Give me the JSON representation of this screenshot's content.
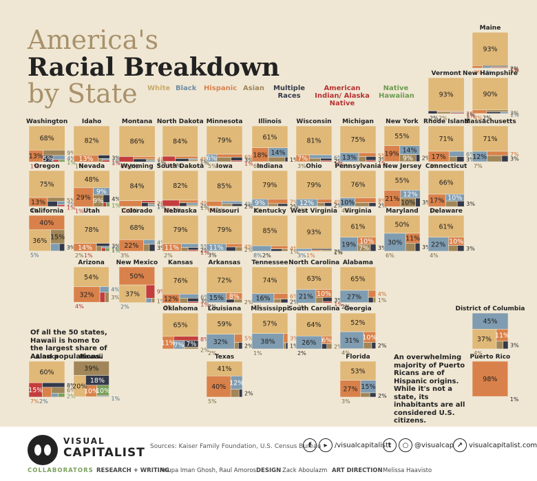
{
  "title": {
    "line1": "America's",
    "line2": "Racial Breakdown",
    "line3": "by State"
  },
  "legend": [
    {
      "label": "White",
      "color": "#e0b877"
    },
    {
      "label": "Black",
      "color": "#7f9cb1"
    },
    {
      "label": "Hispanic",
      "color": "#d9814a"
    },
    {
      "label": "Asian",
      "color": "#a08658"
    },
    {
      "label": "Multiple Races",
      "color": "#34394a"
    },
    {
      "label": "American Indian/ Alaska Native",
      "color": "#c43d3d"
    },
    {
      "label": "Native Hawaiian",
      "color": "#7aa05a"
    }
  ],
  "chart_data": {
    "type": "treemap",
    "unit": "%",
    "states": [
      {
        "name": "Maine",
        "values": {
          "white": 93,
          "hispanic": 2,
          "multiple": 2,
          "black": 1,
          "asian": 1,
          "native": 1
        }
      },
      {
        "name": "Vermont",
        "values": {
          "white": 93,
          "multiple": 2,
          "hispanic": 2,
          "asian": 2,
          "black": 1,
          "native": 1
        }
      },
      {
        "name": "New Hampshire",
        "values": {
          "white": 90,
          "hispanic": 4,
          "asian": 3,
          "multiple": 2,
          "black": 1
        }
      },
      {
        "name": "Washington",
        "values": {
          "white": 68,
          "hispanic": 13,
          "asian": 9,
          "multiple": 5,
          "black": 4,
          "native": 1,
          "hawaiian": 1
        }
      },
      {
        "name": "Idaho",
        "values": {
          "white": 82,
          "hispanic": 13,
          "multiple": 3,
          "asian": 1,
          "black": 1,
          "native": 1
        }
      },
      {
        "name": "Montana",
        "values": {
          "white": 86,
          "native": 6,
          "hispanic": 4,
          "multiple": 3,
          "asian": 1,
          "black": 1
        }
      },
      {
        "name": "North Dakota",
        "values": {
          "white": 84,
          "native": 5,
          "hispanic": 4,
          "multiple": 3,
          "black": 1,
          "asian": 1
        }
      },
      {
        "name": "Minnesota",
        "values": {
          "white": 79,
          "black": 6,
          "hispanic": 6,
          "asian": 5,
          "multiple": 3,
          "native": 1
        }
      },
      {
        "name": "Illinois",
        "values": {
          "white": 61,
          "hispanic": 18,
          "black": 14,
          "asian": 6,
          "multiple": 1
        }
      },
      {
        "name": "Wisconsin",
        "values": {
          "white": 81,
          "hispanic": 7,
          "black": 6,
          "asian": 3,
          "multiple": 2,
          "native": 1
        }
      },
      {
        "name": "Michigan",
        "values": {
          "white": 75,
          "black": 13,
          "hispanic": 5,
          "asian": 3,
          "multiple": 3,
          "native": 1
        }
      },
      {
        "name": "New York",
        "values": {
          "white": 55,
          "hispanic": 19,
          "black": 14,
          "asian": 9,
          "multiple": 2
        }
      },
      {
        "name": "Rhode Island",
        "values": {
          "white": 71,
          "hispanic": 17,
          "black": 6,
          "asian": 3,
          "multiple": 3
        }
      },
      {
        "name": "Massachusetts",
        "values": {
          "white": 71,
          "black": 12,
          "hispanic": 7,
          "asian": 7,
          "multiple": 3
        }
      },
      {
        "name": "Oregon",
        "values": {
          "white": 75,
          "hispanic": 13,
          "asian": 5,
          "multiple": 4,
          "black": 2,
          "native": 1
        }
      },
      {
        "name": "Nevada",
        "values": {
          "white": 48,
          "hispanic": 29,
          "black": 9,
          "asian": 9,
          "multiple": 4,
          "native": 1,
          "hawaiian": 1
        }
      },
      {
        "name": "Wyoming",
        "values": {
          "white": 84,
          "hispanic": 10,
          "native": 2,
          "multiple": 2,
          "asian": 1,
          "black": 1
        }
      },
      {
        "name": "South Dakota",
        "values": {
          "white": 82,
          "native": 8,
          "hispanic": 4,
          "multiple": 2,
          "black": 2,
          "asian": 1
        }
      },
      {
        "name": "Iowa",
        "values": {
          "white": 85,
          "hispanic": 6,
          "black": 4,
          "asian": 2,
          "multiple": 2
        }
      },
      {
        "name": "Indiana",
        "values": {
          "white": 79,
          "black": 9,
          "hispanic": 7,
          "asian": 2,
          "multiple": 2
        }
      },
      {
        "name": "Ohio",
        "values": {
          "white": 79,
          "black": 12,
          "hispanic": 4,
          "asian": 2,
          "multiple": 2
        }
      },
      {
        "name": "Pennsylvania",
        "values": {
          "white": 76,
          "black": 10,
          "hispanic": 8,
          "asian": 4,
          "multiple": 2
        }
      },
      {
        "name": "New Jersey",
        "values": {
          "white": 55,
          "hispanic": 21,
          "black": 12,
          "asian": 10,
          "multiple": 3
        }
      },
      {
        "name": "Connecticut",
        "values": {
          "white": 66,
          "hispanic": 17,
          "black": 10,
          "asian": 5,
          "multiple": 3
        }
      },
      {
        "name": "California",
        "values": {
          "hispanic": 40,
          "white": 36,
          "asian": 15,
          "black": 5,
          "multiple": 3
        }
      },
      {
        "name": "Utah",
        "values": {
          "white": 78,
          "hispanic": 14,
          "multiple": 3,
          "asian": 2,
          "black": 1,
          "native": 1,
          "hawaiian": 1
        }
      },
      {
        "name": "Colorado",
        "values": {
          "white": 68,
          "hispanic": 22,
          "black": 4,
          "asian": 3,
          "multiple": 3
        }
      },
      {
        "name": "Nebraska",
        "values": {
          "white": 79,
          "hispanic": 11,
          "black": 5,
          "asian": 2,
          "multiple": 2,
          "native": 1
        }
      },
      {
        "name": "Missouri",
        "values": {
          "white": 79,
          "black": 11,
          "hispanic": 4,
          "multiple": 3,
          "asian": 2
        }
      },
      {
        "name": "Kentucky",
        "values": {
          "white": 85,
          "black": 8,
          "hispanic": 4,
          "multiple": 2,
          "asian": 1
        }
      },
      {
        "name": "West Virginia",
        "values": {
          "white": 93,
          "black": 3,
          "multiple": 2,
          "hispanic": 1,
          "asian": 1
        }
      },
      {
        "name": "Virginia",
        "values": {
          "white": 61,
          "black": 19,
          "hispanic": 10,
          "asian": 7,
          "multiple": 3
        }
      },
      {
        "name": "Maryland",
        "values": {
          "white": 50,
          "black": 30,
          "hispanic": 11,
          "asian": 6,
          "multiple": 3
        }
      },
      {
        "name": "Delaware",
        "values": {
          "white": 61,
          "black": 22,
          "hispanic": 10,
          "asian": 4,
          "multiple": 3
        }
      },
      {
        "name": "Arizona",
        "values": {
          "white": 54,
          "hispanic": 32,
          "black": 4,
          "native": 4,
          "asian": 3
        }
      },
      {
        "name": "New Mexico",
        "values": {
          "hispanic": 50,
          "white": 37,
          "native": 9,
          "black": 2,
          "asian": 1
        }
      },
      {
        "name": "Kansas",
        "values": {
          "white": 76,
          "hispanic": 12,
          "black": 6,
          "asian": 3,
          "multiple": 3,
          "native": 1
        }
      },
      {
        "name": "Arkansas",
        "values": {
          "white": 72,
          "black": 15,
          "hispanic": 8,
          "multiple": 2,
          "asian": 2
        }
      },
      {
        "name": "Tennessee",
        "values": {
          "white": 74,
          "black": 16,
          "hispanic": 6,
          "asian": 2,
          "multiple": 2
        }
      },
      {
        "name": "North Carolina",
        "values": {
          "white": 63,
          "black": 21,
          "hispanic": 10,
          "asian": 3,
          "multiple": 3,
          "native": 1
        }
      },
      {
        "name": "Alabama",
        "values": {
          "white": 65,
          "black": 27,
          "hispanic": 4,
          "multiple": 2,
          "asian": 1
        }
      },
      {
        "name": "Oklahoma",
        "values": {
          "white": 65,
          "hispanic": 11,
          "native": 8,
          "black": 7,
          "multiple": 7,
          "asian": 2
        }
      },
      {
        "name": "Louisiana",
        "values": {
          "white": 59,
          "black": 32,
          "hispanic": 5,
          "asian": 2,
          "multiple": 2
        }
      },
      {
        "name": "Mississippi",
        "values": {
          "white": 57,
          "black": 38,
          "hispanic": 3,
          "asian": 1,
          "multiple": 1
        }
      },
      {
        "name": "South Carolina",
        "values": {
          "white": 64,
          "black": 26,
          "hispanic": 6,
          "multiple": 2,
          "asian": 2
        }
      },
      {
        "name": "Georgia",
        "values": {
          "white": 52,
          "black": 31,
          "hispanic": 10,
          "asian": 4,
          "multiple": 2
        }
      },
      {
        "name": "District of Columbia",
        "values": {
          "black": 45,
          "white": 37,
          "hispanic": 11,
          "asian": 4,
          "multiple": 3
        }
      },
      {
        "name": "Alaska",
        "values": {
          "white": 60,
          "native": 15,
          "multiple": 8,
          "hispanic": 7,
          "asian": 6,
          "black": 2,
          "hawaiian": 2
        }
      },
      {
        "name": "Hawaii",
        "values": {
          "asian": 39,
          "white": 20,
          "multiple": 18,
          "hispanic": 10,
          "hawaiian": 10,
          "black": 1
        }
      },
      {
        "name": "Texas",
        "values": {
          "white": 41,
          "hispanic": 40,
          "black": 12,
          "asian": 5,
          "multiple": 2
        }
      },
      {
        "name": "Florida",
        "values": {
          "white": 53,
          "hispanic": 27,
          "black": 15,
          "asian": 3,
          "multiple": 2
        }
      },
      {
        "name": "Puerto Rico",
        "values": {
          "hispanic": 98,
          "white": 1
        }
      }
    ]
  },
  "notes": {
    "hawaii": "Of all the 50 states, Hawaii is home to the largest share of Asian populations.",
    "puerto_rico": "An overwhelming majority of Puerto Ricans are of Hispanic origins. While it's not a state, its inhabitants are all considered U.S. citizens."
  },
  "footer": {
    "brand_top": "VISUAL",
    "brand_bottom": "CAPITALIST",
    "sources": "Sources: Kaiser Family Foundation, U.S. Census Bureau",
    "facebook": "/visualcapitalist",
    "twitter": "@visualcap",
    "website": "visualcapitalist.com",
    "collaborators_label": "COLLABORATORS",
    "research_label": "RESEARCH + WRITING",
    "research_names": "Anupa Iman Ghosh, Raul Amoros",
    "design_label": "DESIGN",
    "design_names": "Zack Aboulazm",
    "art_label": "ART DIRECTION",
    "art_names": "Melissa Haavisto"
  }
}
